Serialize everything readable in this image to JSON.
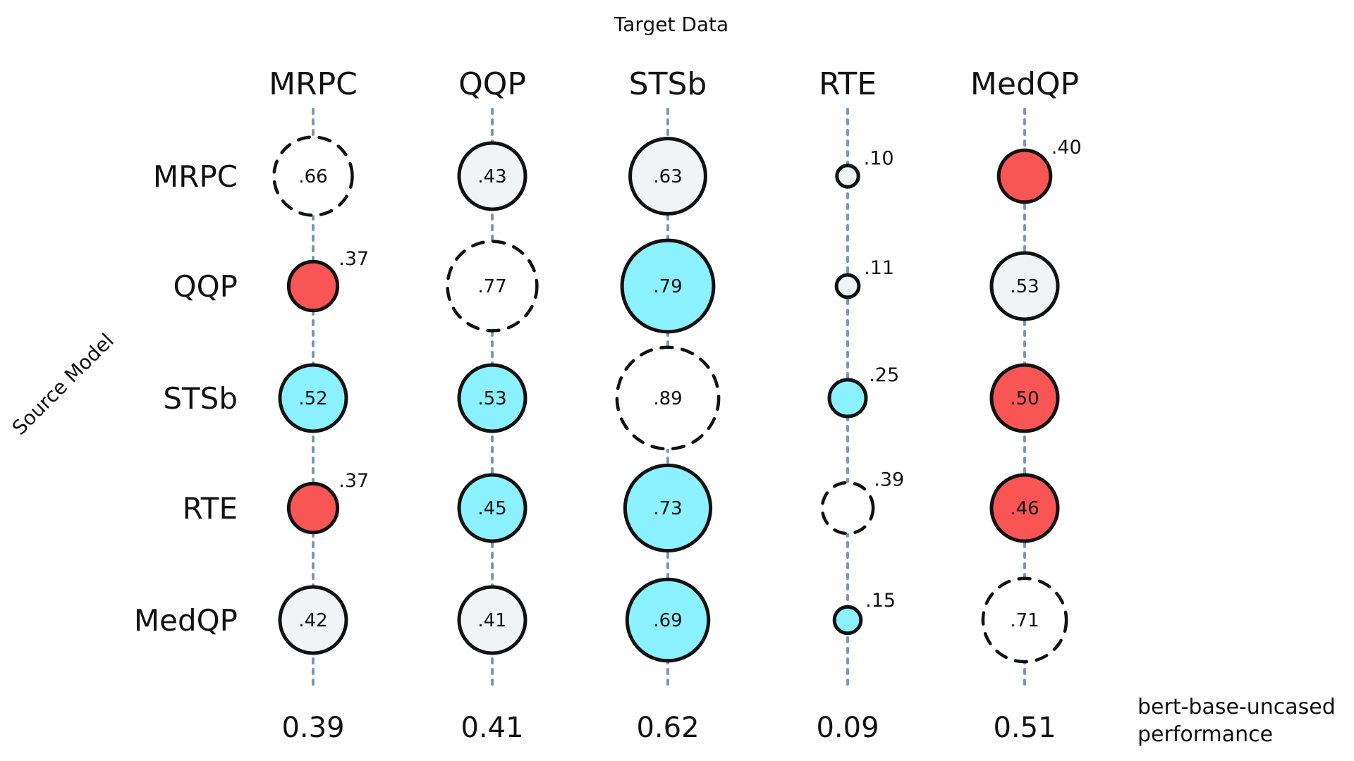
{
  "chart_data": {
    "type": "bubble-matrix",
    "title": "Target Data",
    "xlabel": "Target Data",
    "ylabel": "Source Model",
    "columns": [
      "MRPC",
      "QQP",
      "STSb",
      "RTE",
      "MedQP"
    ],
    "rows": [
      "MRPC",
      "QQP",
      "STSb",
      "RTE",
      "MedQP"
    ],
    "values": [
      [
        0.66,
        0.43,
        0.63,
        0.1,
        0.4
      ],
      [
        0.37,
        0.77,
        0.79,
        0.11,
        0.53
      ],
      [
        0.52,
        0.53,
        0.89,
        0.25,
        0.5
      ],
      [
        0.37,
        0.45,
        0.73,
        0.39,
        0.46
      ],
      [
        0.42,
        0.41,
        0.69,
        0.15,
        0.71
      ]
    ],
    "labels": [
      [
        ".66",
        ".43",
        ".63",
        ".10",
        ".40"
      ],
      [
        ".37",
        ".77",
        ".79",
        ".11",
        ".53"
      ],
      [
        ".52",
        ".53",
        ".89",
        ".25",
        ".50"
      ],
      [
        ".37",
        ".45",
        ".73",
        ".39",
        ".46"
      ],
      [
        ".42",
        ".41",
        ".69",
        ".15",
        ".71"
      ]
    ],
    "cell_style": [
      [
        "diagonal",
        "neutral",
        "neutral",
        "neutral",
        "worse"
      ],
      [
        "worse",
        "diagonal",
        "better",
        "neutral",
        "neutral"
      ],
      [
        "better",
        "better",
        "diagonal",
        "better",
        "worse"
      ],
      [
        "worse",
        "better",
        "better",
        "diagonal",
        "worse"
      ],
      [
        "neutral",
        "neutral",
        "better",
        "better",
        "diagonal"
      ]
    ],
    "baseline": {
      "label_line1": "bert-base-uncased",
      "label_line2": "performance",
      "values": [
        "0.39",
        "0.41",
        "0.62",
        "0.09",
        "0.51"
      ]
    },
    "legend": "none",
    "grid": false
  },
  "colors": {
    "better": "#8cf1fe",
    "worse": "#fa5555",
    "neutral": "#f1f3f5",
    "diagonal": "none",
    "guide": "#7d96b5",
    "stroke": "#111111"
  }
}
